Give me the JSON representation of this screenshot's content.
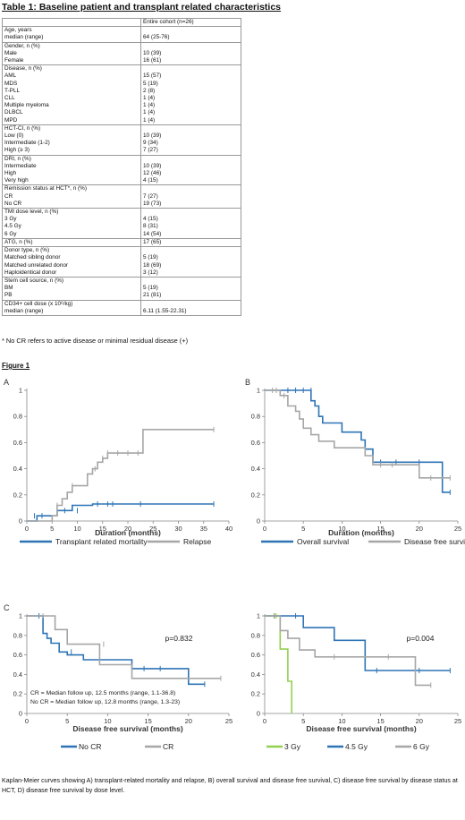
{
  "table": {
    "title": "Table 1: Baseline patient and transplant related characteristics",
    "header": [
      "",
      "Entire cohort (n=26)"
    ],
    "groups": [
      {
        "labels": [
          "Age, years",
          "median (range)"
        ],
        "values": [
          "",
          "64 (25-76)"
        ]
      },
      {
        "labels": [
          "Gender, n (%)",
          "Male",
          "Female"
        ],
        "values": [
          "",
          "10 (39)",
          "16 (61)"
        ]
      },
      {
        "labels": [
          "Disease, n (%)",
          "AML",
          "MDS",
          "T-PLL",
          "CLL",
          "Multiple myeloma",
          "DLBCL",
          "MPD"
        ],
        "values": [
          "",
          "15 (57)",
          "5 (19)",
          "2 (8)",
          "1 (4)",
          "1 (4)",
          "1 (4)",
          "1 (4)"
        ]
      },
      {
        "labels": [
          "HCT-CI, n (%)",
          "Low (0)",
          "Intermediate (1-2)",
          "High (≥ 3)"
        ],
        "values": [
          "",
          "10 (39)",
          "9 (34)",
          "7 (27)"
        ]
      },
      {
        "labels": [
          "DRI, n (%)",
          "Intermediate",
          "High",
          "Very high"
        ],
        "values": [
          "",
          "10 (39)",
          "12 (46)",
          "4 (15)"
        ]
      },
      {
        "labels": [
          "Remission status at HCT*, n (%)",
          "CR",
          "No CR"
        ],
        "values": [
          "",
          "7 (27)",
          "19 (73)"
        ]
      },
      {
        "labels": [
          "TMI dose level, n (%)",
          "3 Gy",
          "4.5 Gy",
          "6 Gy"
        ],
        "values": [
          "",
          "4 (15)",
          "8 (31)",
          "14 (54)"
        ]
      },
      {
        "labels": [
          "ATG, n (%)"
        ],
        "values": [
          "17 (65)"
        ]
      },
      {
        "labels": [
          "Donor type, n (%)",
          "Matched sibling donor",
          "Matched unrelated donor",
          "Haploidentical donor"
        ],
        "values": [
          "",
          "5 (19)",
          "18 (69)",
          "3 (12)"
        ]
      },
      {
        "labels": [
          "Stem cell source, n (%)",
          "BM",
          "PB"
        ],
        "values": [
          "",
          "5 (19)",
          "21 (81)"
        ]
      },
      {
        "labels": [
          "CD34+ cell dose (x 10⁶/kg)",
          "median (range)"
        ],
        "values": [
          "",
          "6.11 (1.55-22.31)"
        ]
      }
    ],
    "footnote": "* No CR refers to active disease or minimal residual disease (+)"
  },
  "figure_title": "Figure 1",
  "caption": "Kaplan-Meier curves showing A) transplant-related mortality and relapse, B) overall survival and disease free survival, C) disease free survival by disease status at HCT, D) disease free survival by dose level.",
  "chart_data": [
    {
      "type": "line",
      "panel_label": "A",
      "xlabel": "Duration (months)",
      "ylabel": "",
      "xlim": [
        0,
        40
      ],
      "ylim": [
        0,
        1
      ],
      "xticks": [
        0,
        5,
        10,
        15,
        20,
        25,
        30,
        35,
        40
      ],
      "yticks": [
        0,
        0.2,
        0.4,
        0.6,
        0.8,
        1
      ],
      "grid": false,
      "legend": "bottom",
      "series": [
        {
          "name": "Transplant related mortality",
          "color": "#2e74b5",
          "x": [
            0,
            2,
            2,
            6,
            6,
            9,
            9,
            13,
            13,
            37
          ],
          "y": [
            0,
            0,
            0.04,
            0.04,
            0.08,
            0.08,
            0.12,
            0.12,
            0.13,
            0.13
          ],
          "censor_x": [
            1.5,
            3,
            7.5,
            10,
            14,
            16,
            17,
            22.5,
            37
          ],
          "censor_y": [
            0.04,
            0.04,
            0.08,
            0.08,
            0.13,
            0.13,
            0.13,
            0.13,
            0.13
          ]
        },
        {
          "name": "Relapse",
          "color": "#a6a6a6",
          "x": [
            0,
            5,
            5,
            6,
            6,
            7,
            7,
            8,
            8,
            9,
            9,
            12,
            12,
            13,
            13,
            14,
            14,
            15,
            15,
            16,
            16,
            23,
            23,
            37
          ],
          "y": [
            0,
            0,
            0.04,
            0.04,
            0.12,
            0.12,
            0.17,
            0.17,
            0.22,
            0.22,
            0.27,
            0.27,
            0.36,
            0.36,
            0.4,
            0.4,
            0.45,
            0.45,
            0.48,
            0.48,
            0.52,
            0.52,
            0.7,
            0.7
          ],
          "censor_x": [
            6,
            9,
            13.5,
            15,
            16,
            18,
            20,
            22,
            37
          ],
          "censor_y": [
            0.12,
            0.27,
            0.4,
            0.48,
            0.52,
            0.52,
            0.52,
            0.52,
            0.7
          ]
        }
      ]
    },
    {
      "type": "line",
      "panel_label": "B",
      "xlabel": "Duration (months)",
      "ylabel": "",
      "xlim": [
        0,
        25
      ],
      "ylim": [
        0,
        1
      ],
      "xticks": [
        0,
        5,
        10,
        15,
        20,
        25
      ],
      "yticks": [
        0,
        0.2,
        0.4,
        0.6,
        0.8,
        1
      ],
      "grid": false,
      "legend": "bottom",
      "series": [
        {
          "name": "Overall survival",
          "color": "#2e74b5",
          "x": [
            0,
            6,
            6,
            6.5,
            6.5,
            7,
            7,
            7.5,
            7.5,
            10,
            10,
            12.5,
            12.5,
            13,
            13,
            14,
            14,
            23,
            23,
            24
          ],
          "y": [
            1,
            1,
            0.92,
            0.92,
            0.88,
            0.88,
            0.8,
            0.8,
            0.75,
            0.75,
            0.68,
            0.68,
            0.62,
            0.62,
            0.55,
            0.55,
            0.45,
            0.45,
            0.22,
            0.22
          ],
          "censor_x": [
            3,
            4,
            5,
            6,
            15,
            17,
            20,
            24
          ],
          "censor_y": [
            1,
            1,
            1,
            1,
            0.45,
            0.45,
            0.45,
            0.22
          ]
        },
        {
          "name": "Disease free survival",
          "color": "#a6a6a6",
          "x": [
            0,
            2,
            2,
            3,
            3,
            4,
            4,
            4.5,
            4.5,
            5,
            5,
            6,
            6,
            7,
            7,
            9,
            9,
            13,
            13,
            14,
            14,
            20,
            20,
            24
          ],
          "y": [
            1,
            1,
            0.96,
            0.96,
            0.88,
            0.88,
            0.84,
            0.84,
            0.78,
            0.78,
            0.71,
            0.71,
            0.66,
            0.66,
            0.61,
            0.61,
            0.56,
            0.56,
            0.5,
            0.5,
            0.43,
            0.43,
            0.33,
            0.33
          ],
          "censor_x": [
            1,
            1.5,
            2.5,
            15,
            16.5,
            21.5,
            24
          ],
          "censor_y": [
            1,
            1,
            0.96,
            0.43,
            0.43,
            0.33,
            0.33
          ]
        }
      ]
    },
    {
      "type": "line",
      "panel_label": "C",
      "xlabel": "Disease free survival (months)",
      "ylabel": "",
      "xlim": [
        0,
        25
      ],
      "ylim": [
        0,
        1
      ],
      "xticks": [
        0,
        5,
        10,
        15,
        20,
        25
      ],
      "yticks": [
        0,
        0.2,
        0.4,
        0.6,
        0.8,
        1
      ],
      "grid": false,
      "legend": "bottom",
      "annotations": [
        "p=0.832",
        "CR = Median follow up, 12.5 months (range, 1.1-36.8)",
        "No CR = Median follow up, 12.8 months (range, 1.3-23)"
      ],
      "series": [
        {
          "name": "No CR",
          "color": "#2e74b5",
          "x": [
            0,
            2,
            2,
            2.5,
            2.5,
            3,
            3,
            4,
            4,
            5,
            5,
            7,
            7,
            13,
            13,
            20,
            20,
            22
          ],
          "y": [
            1,
            1,
            0.82,
            0.82,
            0.77,
            0.77,
            0.72,
            0.72,
            0.63,
            0.63,
            0.6,
            0.6,
            0.55,
            0.55,
            0.46,
            0.46,
            0.3,
            0.3
          ],
          "censor_x": [
            1.5,
            5.5,
            9,
            14.5,
            16.5,
            22
          ],
          "censor_y": [
            1,
            0.63,
            0.55,
            0.46,
            0.46,
            0.3
          ]
        },
        {
          "name": "CR",
          "color": "#a6a6a6",
          "x": [
            0,
            3.5,
            3.5,
            5,
            5,
            9,
            9,
            13,
            13,
            24
          ],
          "y": [
            1,
            1,
            0.86,
            0.86,
            0.71,
            0.71,
            0.5,
            0.5,
            0.36,
            0.36
          ],
          "censor_x": [
            2,
            9.5,
            24
          ],
          "censor_y": [
            1,
            0.71,
            0.36
          ]
        }
      ]
    },
    {
      "type": "line",
      "panel_label": "D",
      "xlabel": "Disease free survival (months)",
      "ylabel": "",
      "xlim": [
        0,
        25
      ],
      "ylim": [
        0,
        1
      ],
      "xticks": [
        0,
        5,
        10,
        15,
        20,
        25
      ],
      "yticks": [
        0,
        0.2,
        0.4,
        0.6,
        0.8,
        1
      ],
      "grid": false,
      "legend": "bottom",
      "annotations": [
        "p=0.004"
      ],
      "series": [
        {
          "name": "3 Gy",
          "color": "#92d050",
          "x": [
            0,
            2,
            2,
            3,
            3,
            3.5,
            3.5
          ],
          "y": [
            1,
            1,
            0.66,
            0.66,
            0.33,
            0.33,
            0
          ],
          "censor_x": [
            1.3,
            1.5
          ],
          "censor_y": [
            1,
            1
          ]
        },
        {
          "name": "4.5 Gy",
          "color": "#2e74b5",
          "x": [
            0,
            5,
            5,
            9,
            9,
            13,
            13,
            24
          ],
          "y": [
            1,
            1,
            0.88,
            0.88,
            0.75,
            0.75,
            0.44,
            0.44
          ],
          "censor_x": [
            4,
            14.5,
            20,
            24
          ],
          "censor_y": [
            1,
            0.44,
            0.44,
            0.44
          ]
        },
        {
          "name": "6 Gy",
          "color": "#a6a6a6",
          "x": [
            0,
            2,
            2,
            3,
            3,
            4.5,
            4.5,
            6.5,
            6.5,
            13,
            13,
            19.5,
            19.5,
            21.5
          ],
          "y": [
            1,
            1,
            0.85,
            0.85,
            0.77,
            0.77,
            0.65,
            0.65,
            0.58,
            0.58,
            0.58,
            0.58,
            0.29,
            0.29
          ],
          "censor_x": [
            1.2,
            9,
            16,
            21.5
          ],
          "censor_y": [
            1,
            0.58,
            0.58,
            0.29
          ]
        }
      ]
    }
  ]
}
